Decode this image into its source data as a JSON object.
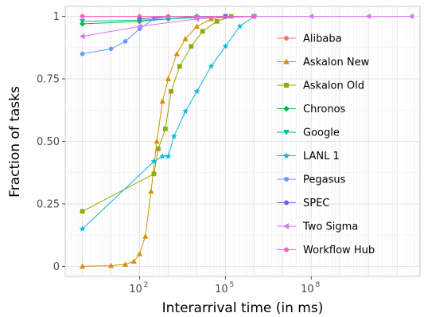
{
  "chart_data": {
    "type": "line",
    "title": "",
    "xlabel": "Interarrival time (in ms)",
    "ylabel": "Fraction of tasks",
    "x_scale": "log10",
    "xlim_log10": [
      -0.6,
      11.8
    ],
    "ylim": [
      -0.04,
      1.04
    ],
    "x_ticks": [
      {
        "log10": 2,
        "base": "10",
        "exp": "2"
      },
      {
        "log10": 5,
        "base": "10",
        "exp": "5"
      },
      {
        "log10": 8,
        "base": "10",
        "exp": "8"
      }
    ],
    "y_ticks": [
      {
        "value": 0,
        "label": "0"
      },
      {
        "value": 0.25,
        "label": "0.25"
      },
      {
        "value": 0.5,
        "label": "0.50"
      },
      {
        "value": 0.75,
        "label": "0.75"
      },
      {
        "value": 1,
        "label": "1"
      }
    ],
    "grid": true,
    "legend_position": "right-inside",
    "series": [
      {
        "name": "Alibaba",
        "color": "#F8766D",
        "marker": "circle",
        "points": [
          [
            0,
            1.0
          ],
          [
            2,
            1.0
          ],
          [
            4,
            1.0
          ],
          [
            6,
            1.0
          ]
        ]
      },
      {
        "name": "Askalon New",
        "color": "#D39200",
        "marker": "triangle-up",
        "points": [
          [
            0,
            0.0
          ],
          [
            1,
            0.003
          ],
          [
            1.5,
            0.008
          ],
          [
            1.8,
            0.02
          ],
          [
            2.0,
            0.05
          ],
          [
            2.2,
            0.12
          ],
          [
            2.4,
            0.3
          ],
          [
            2.6,
            0.5
          ],
          [
            2.8,
            0.66
          ],
          [
            3.0,
            0.75
          ],
          [
            3.3,
            0.85
          ],
          [
            3.6,
            0.91
          ],
          [
            4.0,
            0.96
          ],
          [
            4.5,
            0.99
          ],
          [
            5.0,
            1.0
          ]
        ]
      },
      {
        "name": "Askalon Old",
        "color": "#93AA00",
        "marker": "square",
        "points": [
          [
            0,
            0.22
          ],
          [
            2.5,
            0.37
          ],
          [
            2.65,
            0.47
          ],
          [
            2.9,
            0.55
          ],
          [
            3.1,
            0.7
          ],
          [
            3.4,
            0.8
          ],
          [
            3.8,
            0.88
          ],
          [
            4.2,
            0.94
          ],
          [
            4.7,
            0.98
          ],
          [
            5.2,
            1.0
          ]
        ]
      },
      {
        "name": "Chronos",
        "color": "#00BA38",
        "marker": "diamond",
        "points": [
          [
            0,
            0.97
          ],
          [
            2,
            0.98
          ],
          [
            3,
            0.99
          ],
          [
            4,
            1.0
          ],
          [
            5,
            1.0
          ]
        ]
      },
      {
        "name": "Google",
        "color": "#00C19F",
        "marker": "triangle-down",
        "points": [
          [
            0,
            0.98
          ],
          [
            2,
            0.985
          ],
          [
            3,
            0.99
          ],
          [
            4,
            0.995
          ],
          [
            5,
            1.0
          ],
          [
            6,
            1.0
          ]
        ]
      },
      {
        "name": "LANL 1",
        "color": "#00B9E3",
        "marker": "star",
        "points": [
          [
            0,
            0.15
          ],
          [
            2.5,
            0.42
          ],
          [
            2.8,
            0.44
          ],
          [
            3.0,
            0.44
          ],
          [
            3.2,
            0.52
          ],
          [
            3.6,
            0.62
          ],
          [
            4.0,
            0.7
          ],
          [
            4.5,
            0.8
          ],
          [
            5.0,
            0.88
          ],
          [
            5.5,
            0.96
          ],
          [
            6.0,
            1.0
          ]
        ]
      },
      {
        "name": "Pegasus",
        "color": "#619CFF",
        "marker": "circle",
        "points": [
          [
            0,
            0.85
          ],
          [
            1.0,
            0.87
          ],
          [
            1.5,
            0.9
          ],
          [
            2.0,
            0.95
          ],
          [
            2.5,
            0.99
          ],
          [
            3,
            1.0
          ],
          [
            4,
            1.0
          ],
          [
            5,
            1.0
          ]
        ]
      },
      {
        "name": "SPEC",
        "color": "#6F65E8",
        "marker": "circle",
        "points": [
          [
            2,
            0.99
          ],
          [
            3,
            1.0
          ],
          [
            5,
            1.0
          ],
          [
            6,
            1.0
          ]
        ]
      },
      {
        "name": "Two Sigma",
        "color": "#DB72FB",
        "marker": "triangle-left",
        "points": [
          [
            0,
            0.92
          ],
          [
            2,
            0.96
          ],
          [
            4,
            0.99
          ],
          [
            6,
            1.0
          ],
          [
            8,
            1.0
          ],
          [
            10,
            1.0
          ],
          [
            11.5,
            1.0
          ]
        ]
      },
      {
        "name": "Workflow Hub",
        "color": "#FF61C3",
        "marker": "circle",
        "points": [
          [
            0,
            1.0
          ],
          [
            3,
            1.0
          ],
          [
            6,
            1.0
          ]
        ]
      }
    ]
  }
}
